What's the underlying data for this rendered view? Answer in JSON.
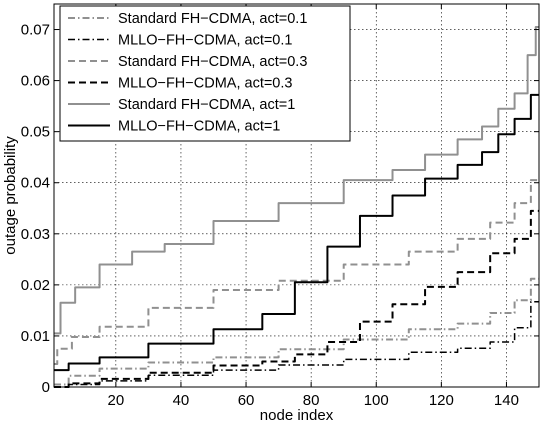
{
  "chart_data": {
    "type": "line",
    "xlabel": "node index",
    "ylabel": "outage probability",
    "xlim": [
      1,
      150
    ],
    "ylim": [
      0,
      0.075
    ],
    "xticks": [
      20,
      40,
      60,
      80,
      100,
      120,
      140
    ],
    "yticks": [
      0,
      0.01,
      0.02,
      0.03,
      0.04,
      0.05,
      0.06,
      0.07
    ],
    "xtick_labels": [
      "20",
      "40",
      "60",
      "80",
      "100",
      "120",
      "140"
    ],
    "ytick_labels": [
      "0",
      "0.01",
      "0.02",
      "0.03",
      "0.04",
      "0.05",
      "0.06",
      "0.07"
    ],
    "grid": true,
    "legend_position": "top-left",
    "series": [
      {
        "name": "Standard FH−CDMA, act=0.1",
        "color": "#909090",
        "style": "dashdot",
        "width": 2,
        "x": [
          1,
          10,
          20,
          40,
          60,
          80,
          100,
          120,
          130,
          140,
          145,
          150
        ],
        "y": [
          0.0005,
          0.0022,
          0.0036,
          0.0048,
          0.0058,
          0.0074,
          0.0093,
          0.0113,
          0.0124,
          0.0145,
          0.017,
          0.0212
        ]
      },
      {
        "name": "MLLO−FH−CDMA, act=0.1",
        "color": "#000000",
        "style": "dashdot",
        "width": 1.5,
        "x": [
          1,
          10,
          20,
          40,
          60,
          80,
          100,
          120,
          130,
          140,
          145,
          150
        ],
        "y": [
          0.0,
          0.0005,
          0.0012,
          0.0023,
          0.0033,
          0.0043,
          0.0054,
          0.0068,
          0.0076,
          0.0088,
          0.0116,
          0.0167
        ]
      },
      {
        "name": "Standard FH−CDMA, act=0.3",
        "color": "#909090",
        "style": "dashed",
        "width": 2,
        "x": [
          1,
          3,
          10,
          20,
          40,
          60,
          80,
          100,
          120,
          130,
          140,
          145,
          150
        ],
        "y": [
          0.0045,
          0.0075,
          0.0098,
          0.0118,
          0.0155,
          0.019,
          0.0208,
          0.024,
          0.0265,
          0.029,
          0.0322,
          0.036,
          0.0405
        ]
      },
      {
        "name": "MLLO−FH−CDMA, act=0.3",
        "color": "#000000",
        "style": "dashed",
        "width": 2,
        "x": [
          1,
          10,
          20,
          40,
          60,
          70,
          80,
          90,
          100,
          110,
          120,
          130,
          140,
          145,
          150
        ],
        "y": [
          0.0,
          0.0007,
          0.0016,
          0.0028,
          0.0042,
          0.005,
          0.0064,
          0.0088,
          0.0128,
          0.0162,
          0.0196,
          0.0225,
          0.0262,
          0.029,
          0.0345
        ]
      },
      {
        "name": "Standard FH−CDMA, act=1",
        "color": "#909090",
        "style": "solid",
        "width": 2,
        "x": [
          1,
          5,
          10,
          20,
          30,
          40,
          60,
          80,
          100,
          110,
          120,
          130,
          135,
          140,
          145,
          148,
          150
        ],
        "y": [
          0.0105,
          0.0165,
          0.0195,
          0.024,
          0.0265,
          0.028,
          0.0325,
          0.036,
          0.0405,
          0.0425,
          0.0455,
          0.0485,
          0.051,
          0.0545,
          0.0575,
          0.065,
          0.0705
        ]
      },
      {
        "name": "MLLO−FH−CDMA, act=1",
        "color": "#000000",
        "style": "solid",
        "width": 2,
        "x": [
          1,
          10,
          20,
          40,
          60,
          70,
          80,
          90,
          100,
          110,
          120,
          130,
          135,
          140,
          145,
          150
        ],
        "y": [
          0.0033,
          0.0046,
          0.0058,
          0.0085,
          0.0113,
          0.0143,
          0.0205,
          0.0275,
          0.0335,
          0.0375,
          0.0408,
          0.0435,
          0.046,
          0.0495,
          0.0525,
          0.0572
        ]
      }
    ]
  }
}
